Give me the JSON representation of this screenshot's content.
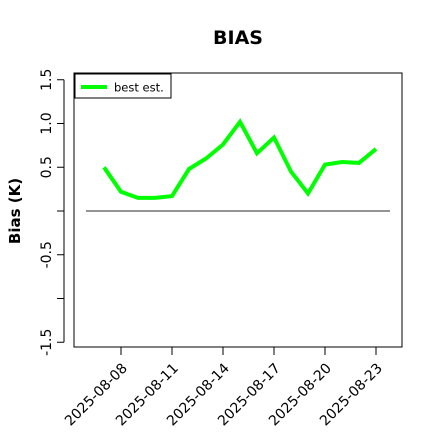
{
  "chart_data": {
    "type": "line",
    "title": "BIAS",
    "xlabel": "",
    "ylabel": "Bias (K)",
    "ylim": [
      -1.6,
      1.6
    ],
    "y_ticks": [
      -1.5,
      -1.0,
      -0.5,
      0.0,
      0.5,
      1.0,
      1.5
    ],
    "y_tick_labels": [
      "-1.5",
      "",
      "-0.5",
      "",
      "0.5",
      "1.0",
      "1.5"
    ],
    "x_tick_labels": [
      "2025-08-08",
      "2025-08-11",
      "2025-08-14",
      "2025-08-17",
      "2025-08-20",
      "2025-08-23"
    ],
    "reference_line": 0.0,
    "grid": false,
    "legend_position": "top-left",
    "colors": {
      "series": "#00ff00",
      "reference": "#555555",
      "axis": "#000000"
    },
    "series": [
      {
        "name": "best est.",
        "x": [
          "2025-08-07",
          "2025-08-08",
          "2025-08-09",
          "2025-08-10",
          "2025-08-11",
          "2025-08-12",
          "2025-08-13",
          "2025-08-14",
          "2025-08-15",
          "2025-08-16",
          "2025-08-17",
          "2025-08-18",
          "2025-08-19",
          "2025-08-20",
          "2025-08-21",
          "2025-08-22",
          "2025-08-23"
        ],
        "values": [
          0.5,
          0.22,
          0.15,
          0.15,
          0.17,
          0.48,
          0.6,
          0.76,
          1.02,
          0.66,
          0.84,
          0.45,
          0.2,
          0.53,
          0.56,
          0.55,
          0.71
        ]
      }
    ]
  }
}
